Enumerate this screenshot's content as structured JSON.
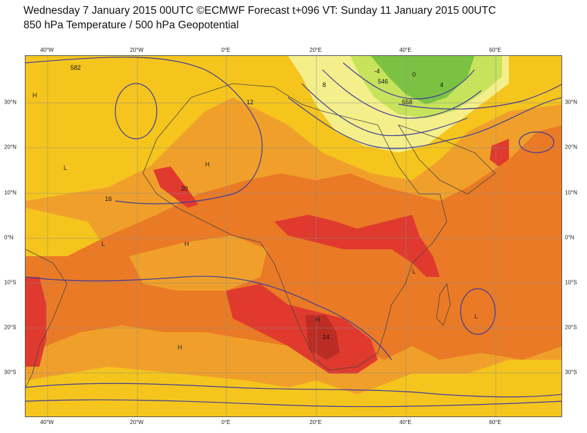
{
  "header": {
    "title_line1": "Wednesday 7 January 2015 00UTC ©ECMWF Forecast t+096 VT: Sunday 11 January 2015 00UTC",
    "title_line2": "850 hPa Temperature / 500 hPa Geopotential"
  },
  "axes": {
    "longitude_labels": [
      "40°W",
      "20°W",
      "0°E",
      "20°E",
      "40°E",
      "60°E"
    ],
    "latitude_labels": [
      "30°N",
      "20°N",
      "10°N",
      "0°N",
      "10°S",
      "20°S",
      "30°S"
    ]
  },
  "contour_labels": [
    "8",
    "12",
    "16",
    "20",
    "24",
    "-4",
    "0",
    "4",
    "546",
    "558",
    "582"
  ],
  "pressure_markers": [
    "H",
    "L"
  ],
  "colors": {
    "temp_green": "#7cc242",
    "temp_lightgreen": "#c6e35b",
    "temp_paleyellow": "#f4ef8a",
    "temp_yellow": "#f5c51d",
    "temp_orange": "#f0a02a",
    "temp_darkorange": "#ea7a26",
    "temp_red": "#e03a2e",
    "temp_darkred": "#b22a22",
    "isoline": "#3a3a9a",
    "coastline": "#444444",
    "gridline": "#8a8a8a"
  }
}
